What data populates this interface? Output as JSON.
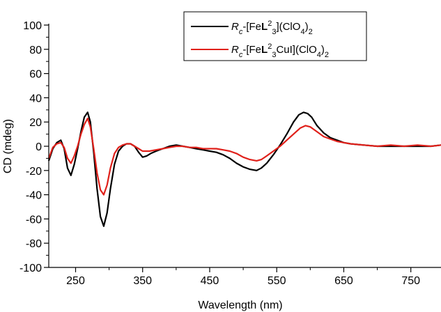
{
  "chart_data": {
    "type": "line",
    "xlabel": "Wavelength (nm)",
    "ylabel": "CD (mdeg)",
    "xlim": [
      210,
      795
    ],
    "ylim": [
      -100,
      100
    ],
    "x_ticks": [
      250,
      350,
      450,
      550,
      650,
      750
    ],
    "x_tick_labels": [
      "250",
      "350",
      "450",
      "550",
      "650",
      "750"
    ],
    "y_ticks": [
      -100,
      -80,
      -60,
      -40,
      -20,
      0,
      20,
      40,
      60,
      80,
      100
    ],
    "y_tick_labels": [
      "-100",
      "-80",
      "-60",
      "-40",
      "-20",
      "0",
      "20",
      "40",
      "60",
      "80",
      "100"
    ],
    "grid": false,
    "legend_position": "top-right",
    "series": [
      {
        "name": "Rc-[FeL23](ClO4)2",
        "legend": {
          "a": "R",
          "b": "c",
          "c": "-[Fe",
          "d": "L",
          "e": "2",
          "f": "3",
          "g": "](ClO",
          "h": "4",
          "i": ")",
          "j": "2"
        },
        "color": "#000000",
        "points": [
          [
            210,
            -12
          ],
          [
            216,
            -2
          ],
          [
            222,
            3
          ],
          [
            228,
            5
          ],
          [
            233,
            -2
          ],
          [
            238,
            -18
          ],
          [
            243,
            -24
          ],
          [
            248,
            -15
          ],
          [
            253,
            -2
          ],
          [
            258,
            12
          ],
          [
            263,
            24
          ],
          [
            268,
            28
          ],
          [
            272,
            20
          ],
          [
            277,
            -5
          ],
          [
            282,
            -35
          ],
          [
            287,
            -58
          ],
          [
            292,
            -66
          ],
          [
            297,
            -55
          ],
          [
            302,
            -35
          ],
          [
            308,
            -15
          ],
          [
            314,
            -4
          ],
          [
            320,
            0
          ],
          [
            326,
            2
          ],
          [
            332,
            2
          ],
          [
            338,
            0
          ],
          [
            344,
            -5
          ],
          [
            350,
            -9
          ],
          [
            356,
            -8
          ],
          [
            362,
            -6
          ],
          [
            370,
            -4
          ],
          [
            380,
            -2
          ],
          [
            390,
            0
          ],
          [
            400,
            1
          ],
          [
            410,
            0
          ],
          [
            420,
            -1
          ],
          [
            430,
            -2
          ],
          [
            440,
            -3
          ],
          [
            450,
            -4
          ],
          [
            460,
            -5
          ],
          [
            470,
            -7
          ],
          [
            480,
            -10
          ],
          [
            490,
            -14
          ],
          [
            500,
            -17
          ],
          [
            510,
            -19
          ],
          [
            520,
            -20
          ],
          [
            527,
            -18
          ],
          [
            535,
            -14
          ],
          [
            545,
            -7
          ],
          [
            555,
            1
          ],
          [
            565,
            10
          ],
          [
            575,
            20
          ],
          [
            583,
            26
          ],
          [
            590,
            28
          ],
          [
            596,
            27
          ],
          [
            602,
            24
          ],
          [
            610,
            17
          ],
          [
            620,
            11
          ],
          [
            630,
            7
          ],
          [
            640,
            5
          ],
          [
            650,
            3
          ],
          [
            660,
            2
          ],
          [
            680,
            1
          ],
          [
            700,
            0
          ],
          [
            720,
            0
          ],
          [
            740,
            0
          ],
          [
            760,
            0
          ],
          [
            780,
            0
          ],
          [
            795,
            1
          ]
        ]
      },
      {
        "name": "Rc-[FeL23CuI](ClO4)2",
        "legend": {
          "a": "R",
          "b": "c",
          "c": "-[Fe",
          "d": "L",
          "e": "2",
          "f": "3",
          "g": "CuI](ClO",
          "h": "4",
          "i": ")",
          "j": "2"
        },
        "color": "#e0201a",
        "points": [
          [
            210,
            -10
          ],
          [
            216,
            -1
          ],
          [
            222,
            2
          ],
          [
            228,
            3
          ],
          [
            233,
            -1
          ],
          [
            238,
            -10
          ],
          [
            243,
            -14
          ],
          [
            248,
            -8
          ],
          [
            253,
            0
          ],
          [
            258,
            10
          ],
          [
            263,
            18
          ],
          [
            268,
            23
          ],
          [
            272,
            16
          ],
          [
            277,
            -2
          ],
          [
            282,
            -22
          ],
          [
            287,
            -36
          ],
          [
            292,
            -40
          ],
          [
            297,
            -32
          ],
          [
            302,
            -18
          ],
          [
            308,
            -6
          ],
          [
            314,
            -1
          ],
          [
            320,
            1
          ],
          [
            326,
            2
          ],
          [
            332,
            2
          ],
          [
            338,
            0
          ],
          [
            344,
            -2
          ],
          [
            350,
            -4
          ],
          [
            360,
            -4
          ],
          [
            370,
            -3
          ],
          [
            380,
            -2
          ],
          [
            390,
            -1
          ],
          [
            400,
            0
          ],
          [
            410,
            0
          ],
          [
            420,
            -1
          ],
          [
            430,
            -1
          ],
          [
            440,
            -2
          ],
          [
            450,
            -2
          ],
          [
            460,
            -2
          ],
          [
            470,
            -3
          ],
          [
            480,
            -4
          ],
          [
            490,
            -6
          ],
          [
            500,
            -9
          ],
          [
            510,
            -11
          ],
          [
            520,
            -12
          ],
          [
            527,
            -11
          ],
          [
            535,
            -8
          ],
          [
            545,
            -4
          ],
          [
            555,
            0
          ],
          [
            565,
            5
          ],
          [
            575,
            10
          ],
          [
            585,
            15
          ],
          [
            593,
            17
          ],
          [
            600,
            16
          ],
          [
            610,
            12
          ],
          [
            620,
            8
          ],
          [
            630,
            6
          ],
          [
            640,
            4
          ],
          [
            650,
            3
          ],
          [
            660,
            2
          ],
          [
            680,
            1
          ],
          [
            700,
            0
          ],
          [
            720,
            1
          ],
          [
            740,
            0
          ],
          [
            760,
            1
          ],
          [
            780,
            0
          ],
          [
            795,
            1
          ]
        ]
      }
    ]
  }
}
